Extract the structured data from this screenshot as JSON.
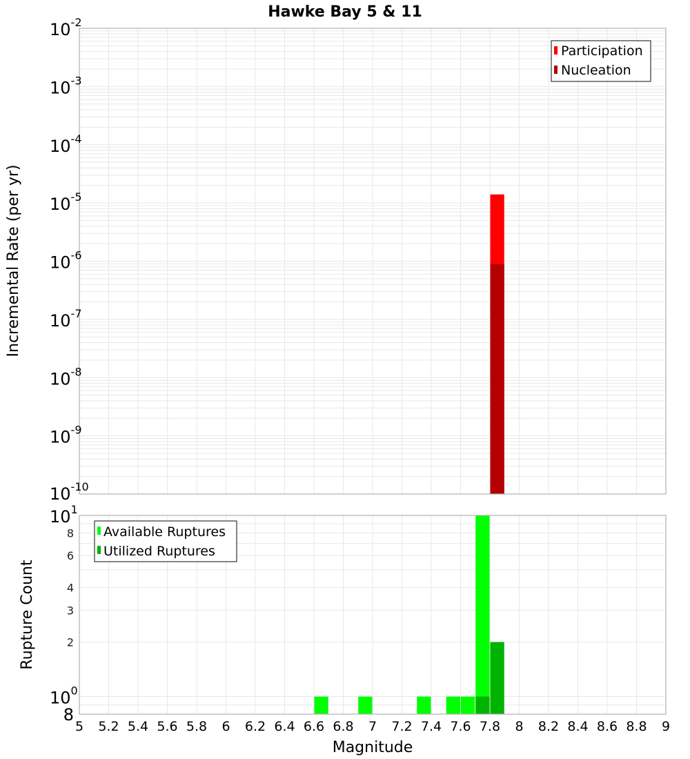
{
  "chart_data": [
    {
      "type": "bar",
      "title": "Hawke Bay 5 & 11",
      "xlabel": "",
      "ylabel": "Incremental Rate (per yr)",
      "yscale": "log",
      "ylim": [
        1e-10,
        0.01
      ],
      "xlim": [
        5,
        9
      ],
      "grid": true,
      "legend_position": "top-right",
      "bin_width": 0.1,
      "y_tick_exponents": [
        -2,
        -3,
        -4,
        -5,
        -6,
        -7,
        -8,
        -9,
        -10
      ],
      "series": [
        {
          "name": "Participation",
          "color": "#ff0000",
          "x": [
            7.85
          ],
          "values": [
            1.4e-05
          ]
        },
        {
          "name": "Nucleation",
          "color": "#b30000",
          "x": [
            7.85
          ],
          "values": [
            8.9e-07
          ]
        }
      ]
    },
    {
      "type": "bar",
      "title": "",
      "xlabel": "Magnitude",
      "ylabel": "Rupture Count",
      "yscale": "log",
      "ylim": [
        0.8,
        10
      ],
      "xlim": [
        5,
        9
      ],
      "grid": true,
      "legend_position": "top-left",
      "bin_width": 0.1,
      "x_ticks": [
        "5",
        "5.2",
        "5.4",
        "5.6",
        "5.8",
        "6",
        "6.2",
        "6.4",
        "6.6",
        "6.8",
        "7",
        "7.2",
        "7.4",
        "7.6",
        "7.8",
        "8",
        "8.2",
        "8.4",
        "8.6",
        "8.8",
        "9"
      ],
      "y_tick_labels": [
        {
          "value": 10,
          "label": "10",
          "sup": "1",
          "major": true
        },
        {
          "value": 8,
          "label": "8",
          "major": false
        },
        {
          "value": 6,
          "label": "6",
          "major": false
        },
        {
          "value": 4,
          "label": "4",
          "major": false
        },
        {
          "value": 3,
          "label": "3",
          "major": false
        },
        {
          "value": 2,
          "label": "2",
          "major": false
        },
        {
          "value": 1,
          "label": "10",
          "sup": "0",
          "major": true
        },
        {
          "value": 0.8,
          "label": "8",
          "major": true
        }
      ],
      "series": [
        {
          "name": "Available Ruptures",
          "color": "#00ff00",
          "x": [
            6.65,
            6.95,
            7.35,
            7.55,
            7.65,
            7.75
          ],
          "values": [
            1,
            1,
            1,
            1,
            1,
            10
          ]
        },
        {
          "name": "Utilized Ruptures",
          "color": "#00b300",
          "x": [
            7.75,
            7.85
          ],
          "values": [
            1,
            2
          ]
        }
      ]
    }
  ],
  "labels": {
    "title": "Hawke Bay 5 & 11",
    "upper_ylabel": "Incremental Rate (per yr)",
    "lower_ylabel": "Rupture Count",
    "xlabel": "Magnitude",
    "legend_upper": [
      "Participation",
      "Nucleation"
    ],
    "legend_lower": [
      "Available Ruptures",
      "Utilized Ruptures"
    ]
  }
}
